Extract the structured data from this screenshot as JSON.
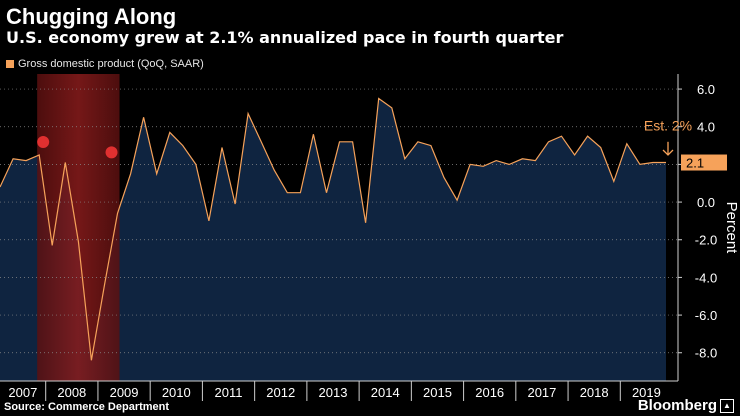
{
  "header": {
    "title": "Chugging Along",
    "subtitle": "U.S. economy grew at 2.1% annualized pace in fourth quarter"
  },
  "legend": {
    "label": "Gross domestic product (QoQ, SAAR)"
  },
  "footer": {
    "source": "Source: Commerce Department",
    "brand": "Bloomberg"
  },
  "colors": {
    "background": "#000000",
    "area_fill": "#0f2440",
    "line": "#f6a25a",
    "recession": "#6b1414",
    "marker": "#e03030"
  },
  "chart_data": {
    "type": "area",
    "title": "Chugging Along",
    "subtitle": "U.S. economy grew at 2.1% annualized pace in fourth quarter",
    "ylabel": "Percent",
    "ylim": [
      -9.5,
      6.8
    ],
    "yticks": [
      6.0,
      4.0,
      2.0,
      0.0,
      -2.0,
      -4.0,
      -6.0,
      -8.0
    ],
    "ytick_labels": [
      "6.0",
      "4.0",
      "2.0",
      "0.0",
      "-2.0",
      "-4.0",
      "-6.0",
      "-8.0"
    ],
    "year_labels": [
      "2007",
      "2008",
      "2009",
      "2010",
      "2011",
      "2012",
      "2013",
      "2014",
      "2015",
      "2016",
      "2017",
      "2018",
      "2019"
    ],
    "series": [
      {
        "name": "Gross domestic product (QoQ, SAAR)",
        "start": "2007 Q1",
        "values": [
          0.8,
          2.3,
          2.2,
          2.5,
          -2.3,
          2.1,
          -2.1,
          -8.4,
          -4.4,
          -0.6,
          1.5,
          4.5,
          1.5,
          3.7,
          3.0,
          2.0,
          -1.0,
          2.9,
          -0.1,
          4.7,
          3.2,
          1.7,
          0.5,
          0.5,
          3.6,
          0.5,
          3.2,
          3.2,
          -1.1,
          5.5,
          5.0,
          2.3,
          3.2,
          3.0,
          1.3,
          0.1,
          2.0,
          1.9,
          2.2,
          2.0,
          2.3,
          2.2,
          3.2,
          3.5,
          2.5,
          3.5,
          2.9,
          1.1,
          3.1,
          2.0,
          2.1,
          2.1
        ]
      }
    ],
    "recession": {
      "start": "2007 Q4",
      "end": "2009 Q2"
    },
    "recession_markers": [
      "2007 Q4",
      "2009 Q2"
    ],
    "annotation": {
      "text": "Est. 2%",
      "arrow": "down"
    },
    "last_value_label": "2.1"
  }
}
